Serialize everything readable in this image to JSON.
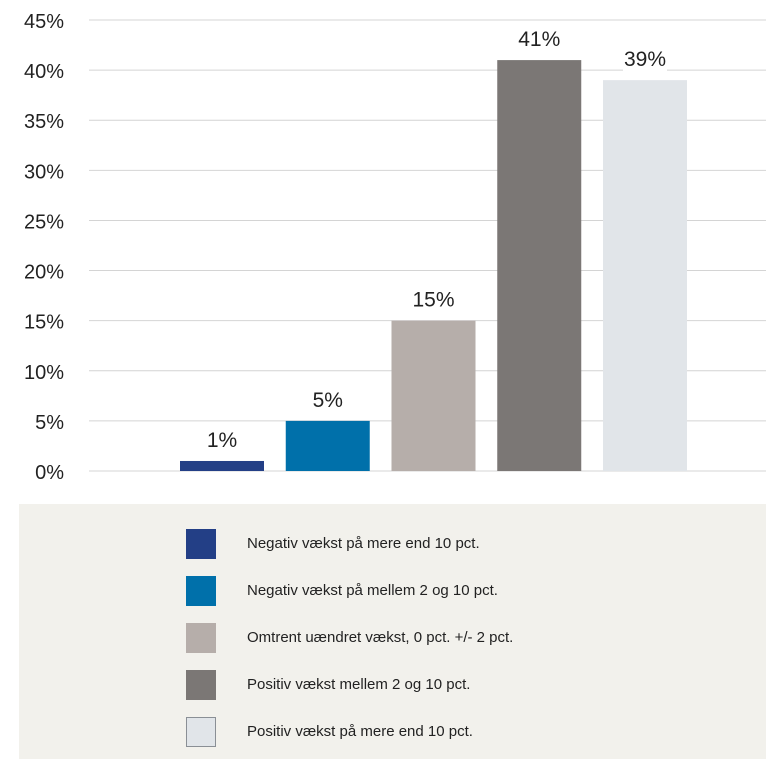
{
  "chart_data": {
    "type": "bar",
    "categories": [
      "Negativ vækst på mere end 10 pct.",
      "Negativ vækst på mellem 2 og 10 pct.",
      "Omtrent uændret vækst, 0 pct. +/- 2 pct.",
      "Positiv vækst mellem 2 og 10 pct.",
      "Positiv vækst på mere end 10 pct."
    ],
    "values": [
      1,
      5,
      15,
      41,
      39
    ],
    "value_labels": [
      "1%",
      "5%",
      "15%",
      "41%",
      "39%"
    ],
    "colors": [
      "#233f86",
      "#0070aa",
      "#b6aeaa",
      "#7b7775",
      "#e1e5e9"
    ],
    "yticks": [
      0,
      5,
      10,
      15,
      20,
      25,
      30,
      35,
      40,
      45
    ],
    "ytick_labels": [
      "0%",
      "5%",
      "10%",
      "15%",
      "20%",
      "25%",
      "30%",
      "35%",
      "40%",
      "45%"
    ],
    "ylim": [
      0,
      45
    ],
    "grid": true,
    "legend_position": "bottom"
  }
}
